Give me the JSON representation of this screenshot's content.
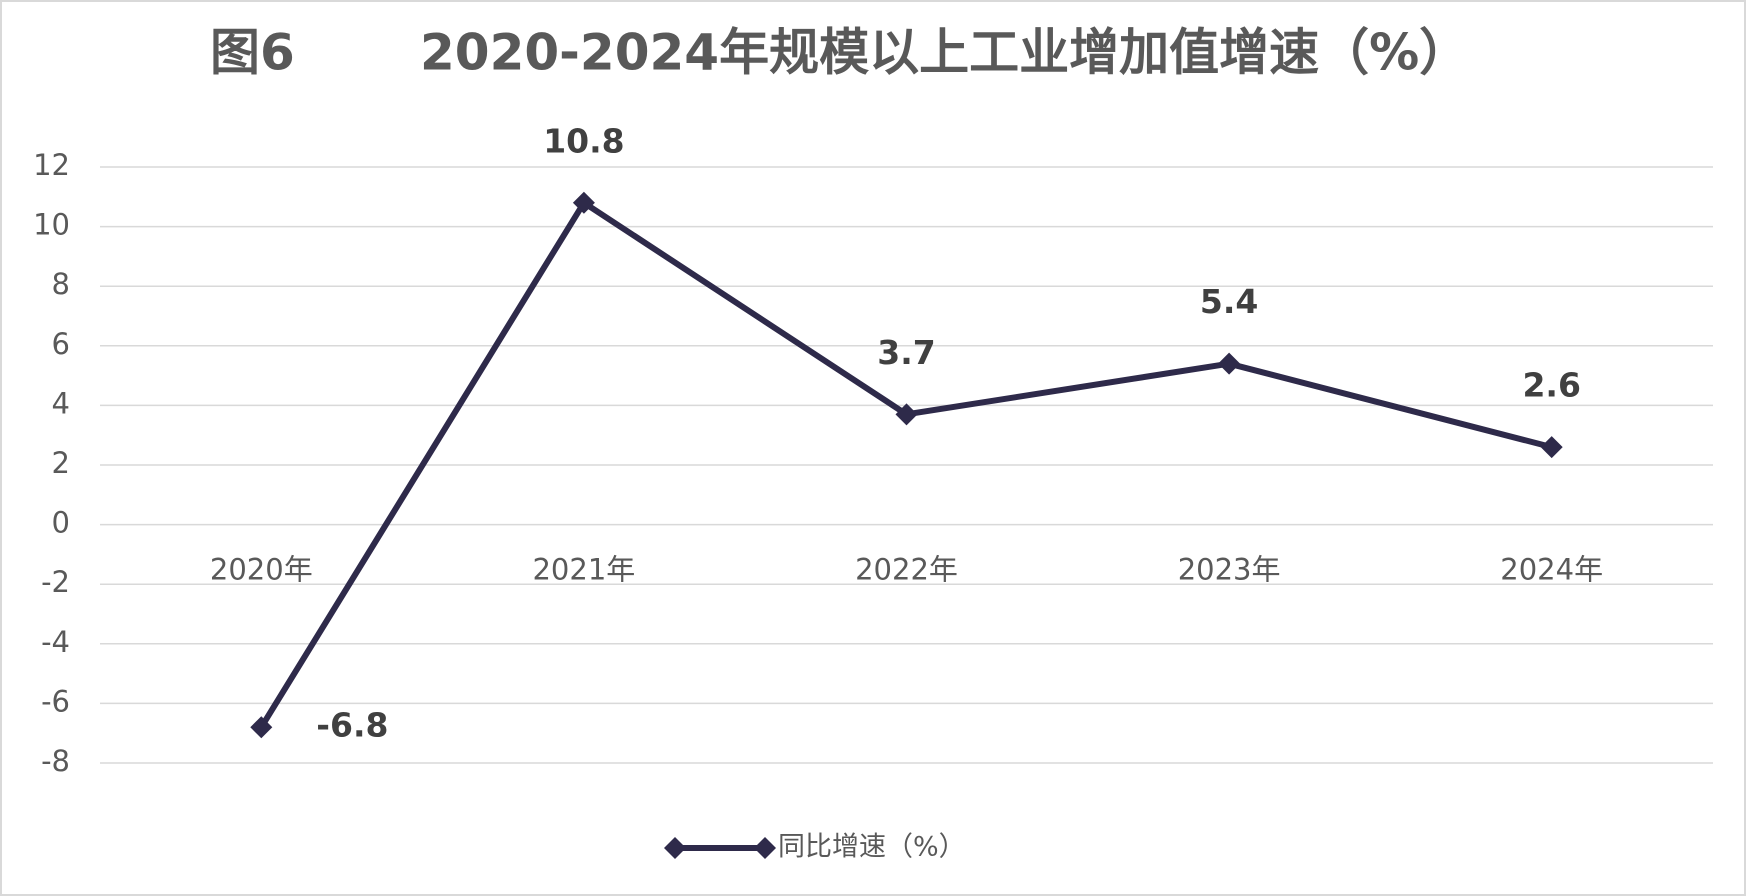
{
  "chart_data": {
    "type": "line",
    "figure_label": "图6",
    "title": "2020-2024年规模以上工业增加值增速（%）",
    "categories": [
      "2020年",
      "2021年",
      "2022年",
      "2023年",
      "2024年"
    ],
    "series": [
      {
        "name": "同比增速（%）",
        "color": "#2e2a4a",
        "values": [
          -6.8,
          10.8,
          3.7,
          5.4,
          2.6
        ]
      }
    ],
    "ylim": [
      -8,
      12
    ],
    "yticks": [
      -8,
      -6,
      -4,
      -2,
      0,
      2,
      4,
      6,
      8,
      10,
      12
    ],
    "grid": true,
    "legend": "bottom"
  }
}
